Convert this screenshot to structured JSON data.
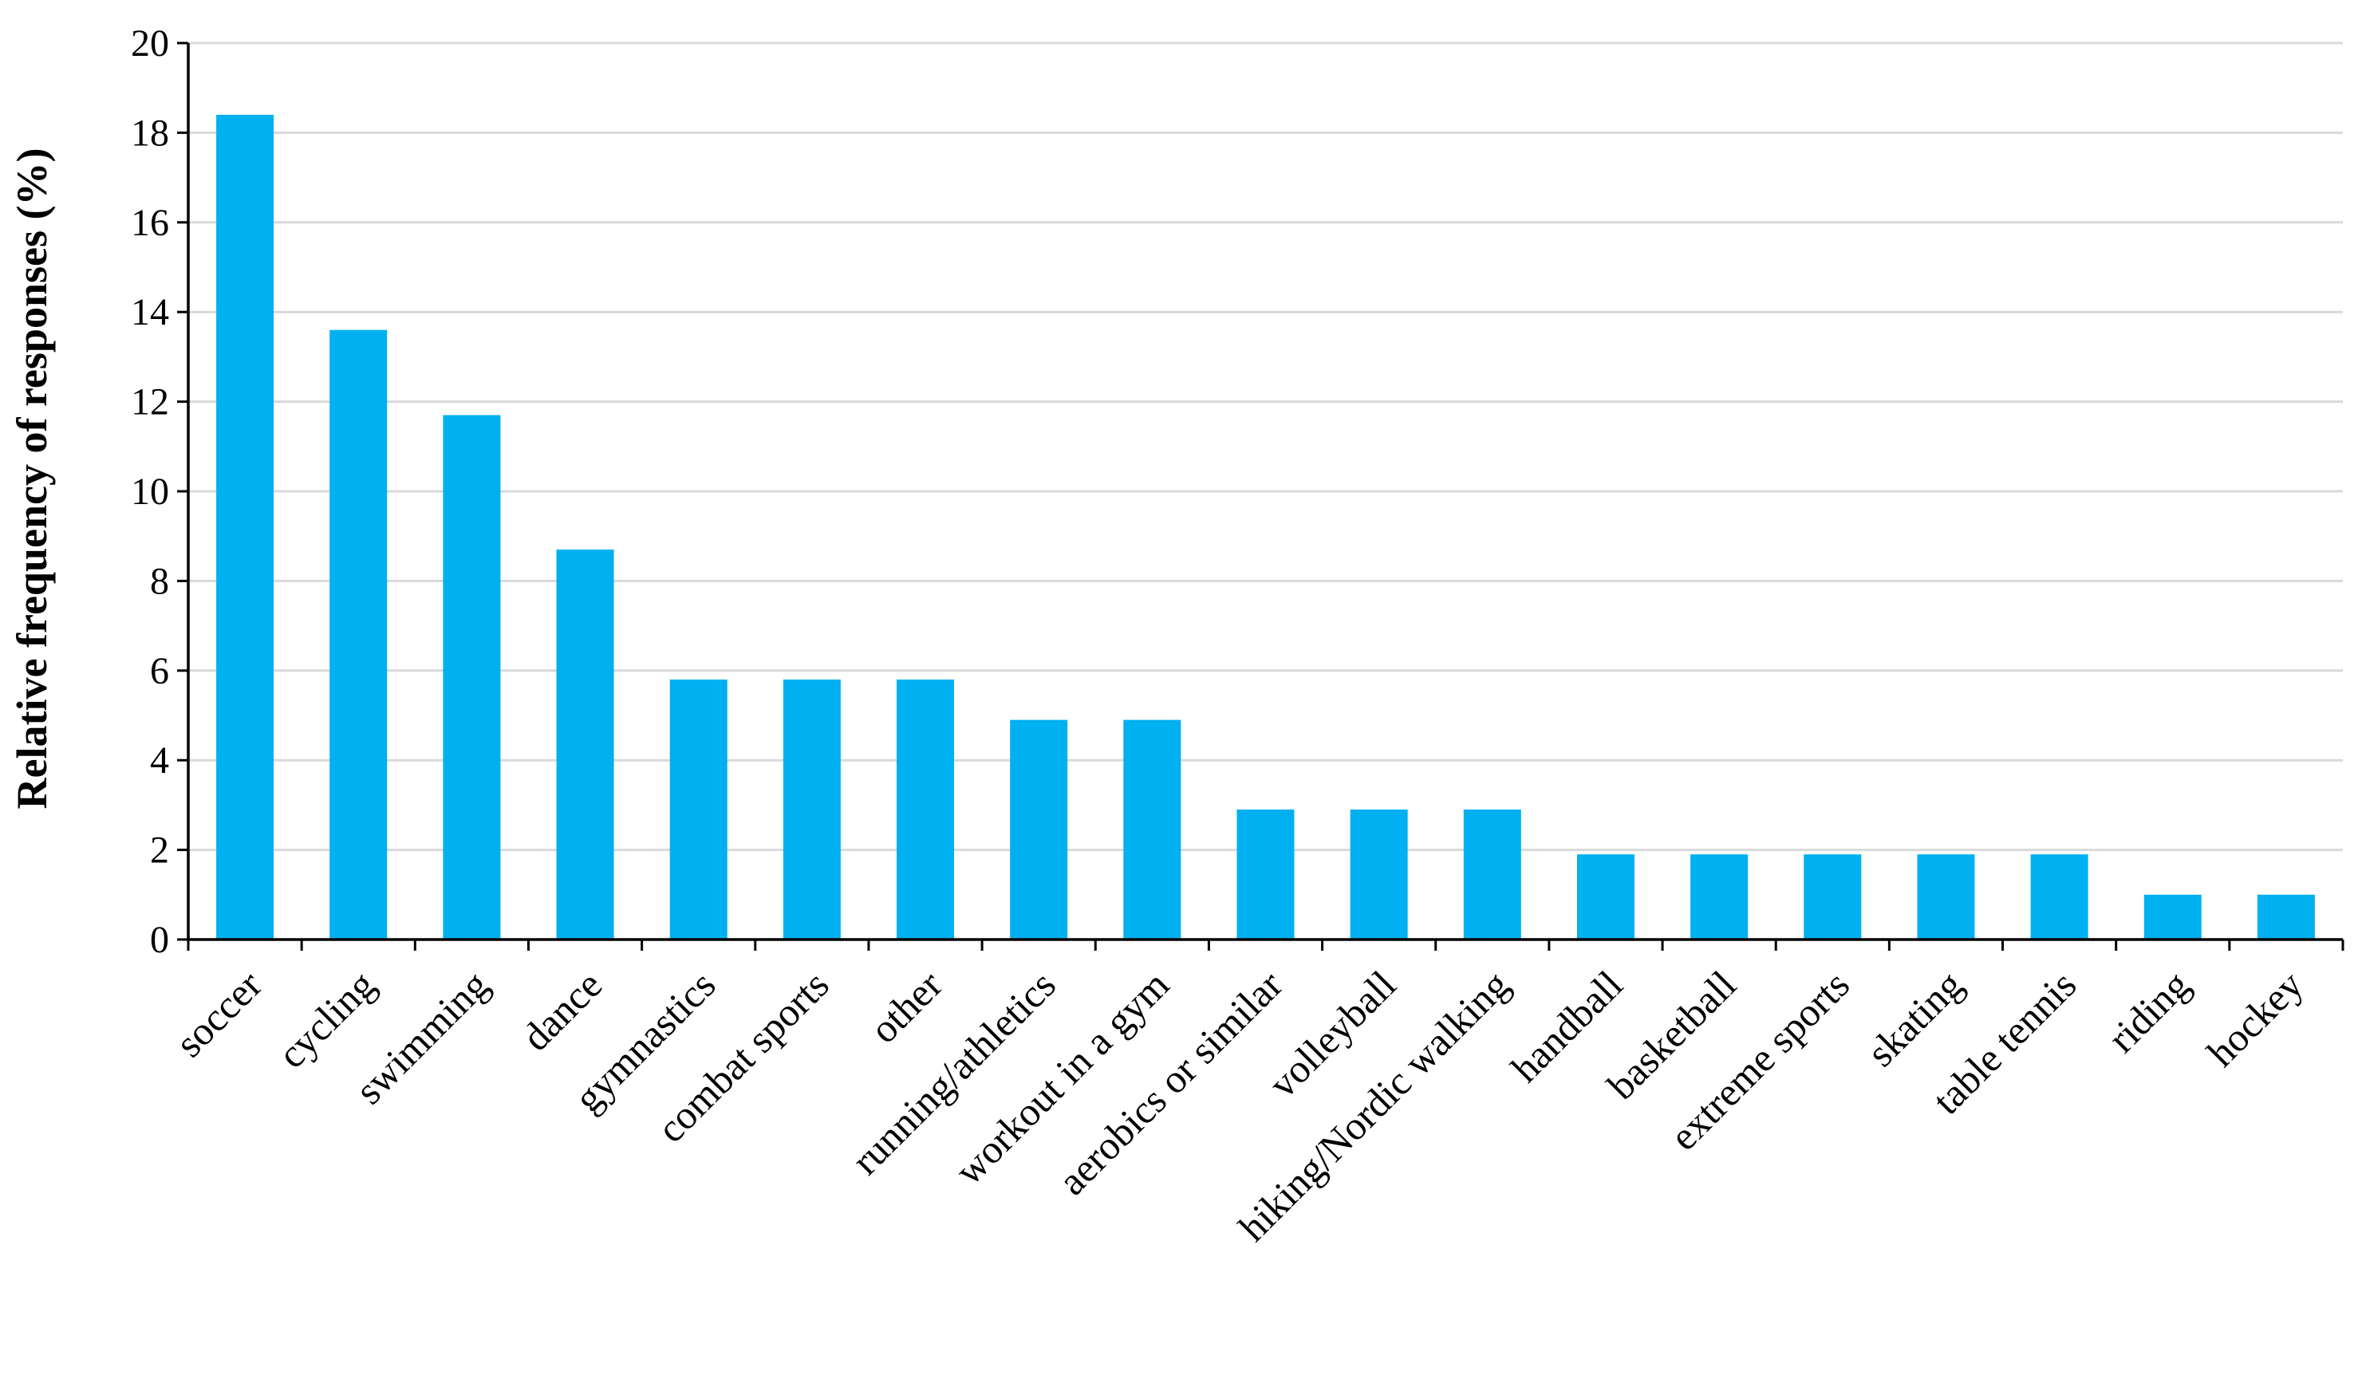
{
  "chart_data": {
    "type": "bar",
    "title": "",
    "xlabel": "",
    "ylabel": "Relative frequency of responses (%)",
    "ylim": [
      0,
      20
    ],
    "yticks": [
      0,
      2,
      4,
      6,
      8,
      10,
      12,
      14,
      16,
      18,
      20
    ],
    "grid": "horizontal",
    "bar_color": "#00b0f0",
    "categories": [
      "soccer",
      "cycling",
      "swimming",
      "dance",
      "gymnastics",
      "combat sports",
      "other",
      "running/athletics",
      "workout in a gym",
      "aerobics or similar",
      "volleyball",
      "hiking/Nordic walking",
      "handball",
      "basketball",
      "extreme sports",
      "skating",
      "table tennis",
      "riding",
      "hockey"
    ],
    "values": [
      18.4,
      13.6,
      11.7,
      8.7,
      5.8,
      5.8,
      5.8,
      4.9,
      4.9,
      2.9,
      2.9,
      2.9,
      1.9,
      1.9,
      1.9,
      1.9,
      1.9,
      1.0,
      1.0
    ]
  }
}
